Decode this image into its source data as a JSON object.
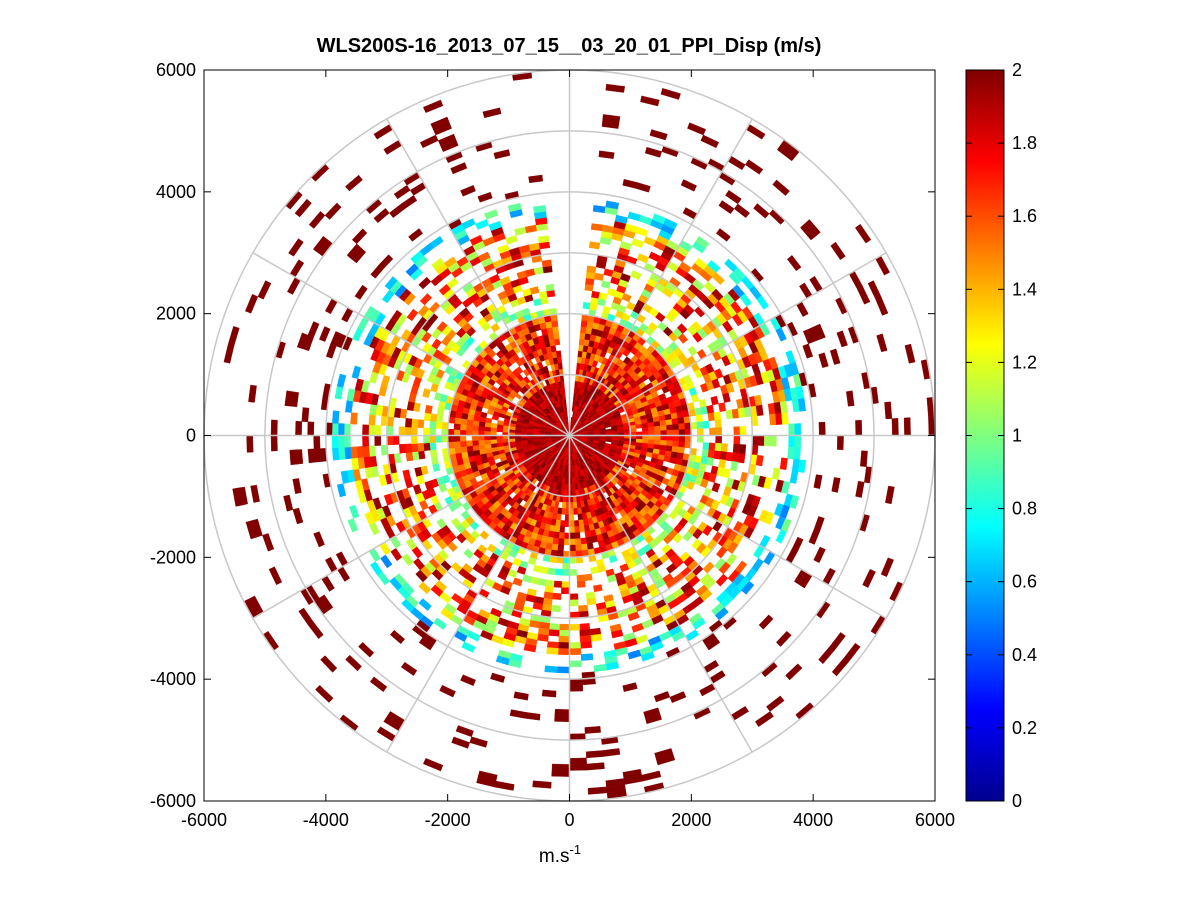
{
  "chart_data": {
    "type": "heatmap",
    "subtype": "polar-ppi-scan",
    "title": "WLS200S-16_2013_07_15__03_20_01_PPI_Disp (m/s)",
    "xlabel_base": "m.s",
    "xlabel_exp": "-1",
    "ylabel": "",
    "xlim": [
      -6000,
      6000
    ],
    "ylim": [
      -6000,
      6000
    ],
    "x_ticks": [
      "-6000",
      "-4000",
      "-2000",
      "0",
      "2000",
      "4000",
      "6000"
    ],
    "y_ticks": [
      "6000",
      "4000",
      "2000",
      "0",
      "-2000",
      "-4000",
      "-6000"
    ],
    "range_rings_m": [
      1000,
      2000,
      3000,
      4000,
      5000,
      6000
    ],
    "spokes_deg": [
      0,
      30,
      60,
      90,
      120,
      150,
      180,
      210,
      240,
      270,
      300,
      330
    ],
    "colorbar": {
      "colormap": "jet",
      "range": [
        0,
        2
      ],
      "ticks": [
        "2",
        "1.8",
        "1.6",
        "1.4",
        "1.2",
        "1",
        "0.8",
        "0.6",
        "0.4",
        "0.2",
        "0"
      ]
    },
    "data_description": "Doppler wind-lidar dispersion values (m/s) on a polar grid",
    "zones": [
      {
        "r_min": 0,
        "r_max": 900,
        "value_range": [
          1.8,
          2.0
        ],
        "coverage": 0.99
      },
      {
        "r_min": 900,
        "r_max": 2000,
        "value_range": [
          1.4,
          2.0
        ],
        "coverage": 0.95
      },
      {
        "r_min": 2000,
        "r_max": 2250,
        "value_range": [
          0.8,
          1.4
        ],
        "coverage": 0.6
      },
      {
        "r_min": 2250,
        "r_max": 3600,
        "value_range": [
          1.0,
          2.0
        ],
        "coverage": 0.55
      },
      {
        "r_min": 3600,
        "r_max": 3900,
        "value_range": [
          0.5,
          1.0
        ],
        "coverage": 0.5
      },
      {
        "r_min": 3900,
        "r_max": 6000,
        "value_range": [
          1.9,
          2.0
        ],
        "coverage": 0.12
      }
    ],
    "gap_sector_deg": [
      -5,
      5
    ]
  },
  "colors": {
    "grid": "#c8c8c8",
    "axes": "#000000",
    "background": "#ffffff"
  }
}
